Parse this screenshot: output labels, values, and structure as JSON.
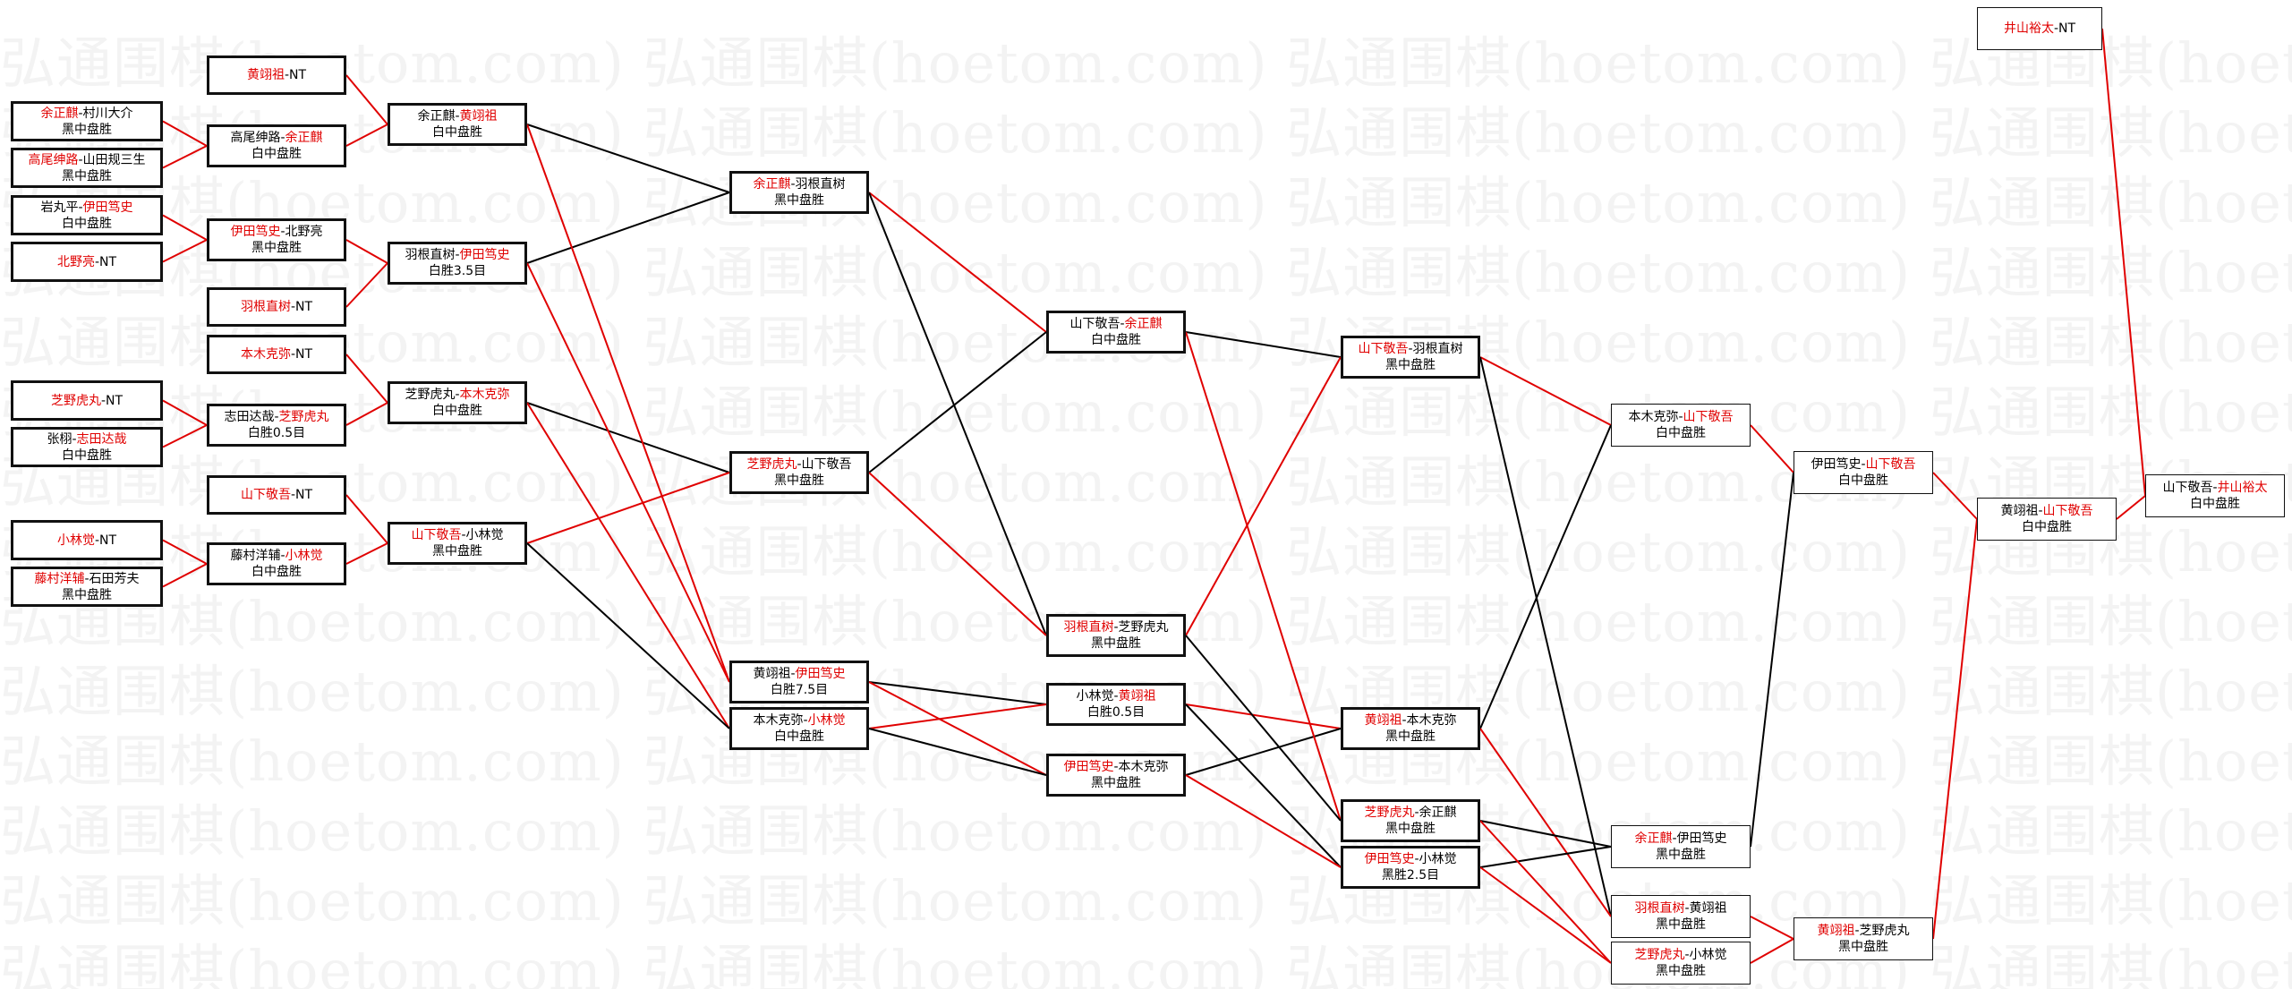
{
  "watermark": "弘通围棋(hoetom.com)",
  "colors": {
    "winner": "#e00000",
    "text": "#000000",
    "line_win": "#e00000",
    "line_loss": "#000000"
  },
  "matches": [
    {
      "id": "m_huang_bye",
      "p1": "黄翊祖",
      "p2": "NT",
      "win": 1,
      "result": ""
    },
    {
      "id": "m_yu_murakawa",
      "p1": "余正麒",
      "p2": "村川大介",
      "win": 1,
      "result": "黑中盘胜"
    },
    {
      "id": "m_takao_yamada",
      "p1": "高尾绅路",
      "p2": "山田规三生",
      "win": 1,
      "result": "黑中盘胜"
    },
    {
      "id": "m_iwamaru_iyoda",
      "p1": "岩丸平",
      "p2": "伊田笃史",
      "win": 2,
      "result": "白中盘胜"
    },
    {
      "id": "m_kitano_bye",
      "p1": "北野亮",
      "p2": "NT",
      "win": 1,
      "result": ""
    },
    {
      "id": "m_hane_bye",
      "p1": "羽根直树",
      "p2": "NT",
      "win": 1,
      "result": ""
    },
    {
      "id": "m_motoki_bye",
      "p1": "本木克弥",
      "p2": "NT",
      "win": 1,
      "result": ""
    },
    {
      "id": "m_shibano_bye",
      "p1": "芝野虎丸",
      "p2": "NT",
      "win": 1,
      "result": ""
    },
    {
      "id": "m_zhang_shida",
      "p1": "张栩",
      "p2": "志田达哉",
      "win": 2,
      "result": "白中盘胜"
    },
    {
      "id": "m_yamashita_bye",
      "p1": "山下敬吾",
      "p2": "NT",
      "win": 1,
      "result": ""
    },
    {
      "id": "m_kobayashi_bye",
      "p1": "小林觉",
      "p2": "NT",
      "win": 1,
      "result": ""
    },
    {
      "id": "m_fujimura_ishida",
      "p1": "藤村洋辅",
      "p2": "石田芳夫",
      "win": 1,
      "result": "黑中盘胜"
    },
    {
      "id": "m_takao_yu",
      "p1": "高尾绅路",
      "p2": "余正麒",
      "win": 2,
      "result": "白中盘胜"
    },
    {
      "id": "m_iyoda_kitano",
      "p1": "伊田笃史",
      "p2": "北野亮",
      "win": 1,
      "result": "黑中盘胜"
    },
    {
      "id": "m_shida_shibano",
      "p1": "志田达哉",
      "p2": "芝野虎丸",
      "win": 2,
      "result": "白胜0.5目"
    },
    {
      "id": "m_fujimura_kobayashi",
      "p1": "藤村洋辅",
      "p2": "小林觉",
      "win": 2,
      "result": "白中盘胜"
    },
    {
      "id": "m_yu_huang",
      "p1": "余正麒",
      "p2": "黄翊祖",
      "win": 2,
      "result": "白中盘胜"
    },
    {
      "id": "m_hane_iyoda",
      "p1": "羽根直树",
      "p2": "伊田笃史",
      "win": 2,
      "result": "白胜3.5目"
    },
    {
      "id": "m_shibano_motoki",
      "p1": "芝野虎丸",
      "p2": "本木克弥",
      "win": 2,
      "result": "白中盘胜"
    },
    {
      "id": "m_yamashita_kobayashi",
      "p1": "山下敬吾",
      "p2": "小林觉",
      "win": 1,
      "result": "黑中盘胜"
    },
    {
      "id": "m_yu_hane",
      "p1": "余正麒",
      "p2": "羽根直树",
      "win": 1,
      "result": "黑中盘胜"
    },
    {
      "id": "m_shibano_yamashita",
      "p1": "芝野虎丸",
      "p2": "山下敬吾",
      "win": 1,
      "result": "黑中盘胜"
    },
    {
      "id": "m_huang_iyoda",
      "p1": "黄翊祖",
      "p2": "伊田笃史",
      "win": 2,
      "result": "白胜7.5目"
    },
    {
      "id": "m_motoki_kobayashi",
      "p1": "本木克弥",
      "p2": "小林觉",
      "win": 2,
      "result": "白中盘胜"
    },
    {
      "id": "m_yamashita_yu",
      "p1": "山下敬吾",
      "p2": "余正麒",
      "win": 2,
      "result": "白中盘胜"
    },
    {
      "id": "m_hane_shibano",
      "p1": "羽根直树",
      "p2": "芝野虎丸",
      "win": 1,
      "result": "黑中盘胜"
    },
    {
      "id": "m_kobayashi_huang",
      "p1": "小林觉",
      "p2": "黄翊祖",
      "win": 2,
      "result": "白胜0.5目"
    },
    {
      "id": "m_iyoda_motoki",
      "p1": "伊田笃史",
      "p2": "本木克弥",
      "win": 1,
      "result": "黑中盘胜"
    },
    {
      "id": "m_yamashita_hane",
      "p1": "山下敬吾",
      "p2": "羽根直树",
      "win": 1,
      "result": "黑中盘胜"
    },
    {
      "id": "m_huang_motoki",
      "p1": "黄翊祖",
      "p2": "本木克弥",
      "win": 1,
      "result": "黑中盘胜"
    },
    {
      "id": "m_shibano_yu",
      "p1": "芝野虎丸",
      "p2": "余正麒",
      "win": 1,
      "result": "黑中盘胜"
    },
    {
      "id": "m_iyoda_kobayashi",
      "p1": "伊田笃史",
      "p2": "小林觉",
      "win": 1,
      "result": "黑胜2.5目"
    },
    {
      "id": "m_motoki_yamashita",
      "p1": "本木克弥",
      "p2": "山下敬吾",
      "win": 2,
      "result": "白中盘胜"
    },
    {
      "id": "m_yu_iyoda",
      "p1": "余正麒",
      "p2": "伊田笃史",
      "win": 1,
      "result": "黑中盘胜"
    },
    {
      "id": "m_hane_huang",
      "p1": "羽根直树",
      "p2": "黄翊祖",
      "win": 1,
      "result": "黑中盘胜"
    },
    {
      "id": "m_shibano_kobayashi",
      "p1": "芝野虎丸",
      "p2": "小林觉",
      "win": 1,
      "result": "黑中盘胜"
    },
    {
      "id": "m_iyoda_yamashita",
      "p1": "伊田笃史",
      "p2": "山下敬吾",
      "win": 2,
      "result": "白中盘胜"
    },
    {
      "id": "m_huang_shibano",
      "p1": "黄翊祖",
      "p2": "芝野虎丸",
      "win": 1,
      "result": "黑中盘胜"
    },
    {
      "id": "m_huang_yamashita",
      "p1": "黄翊祖",
      "p2": "山下敬吾",
      "win": 2,
      "result": "白中盘胜"
    },
    {
      "id": "m_iyama_bye",
      "p1": "井山裕太",
      "p2": "NT",
      "win": 1,
      "result": ""
    },
    {
      "id": "m_final",
      "p1": "山下敬吾",
      "p2": "井山裕太",
      "win": 2,
      "result": "白中盘胜"
    }
  ]
}
